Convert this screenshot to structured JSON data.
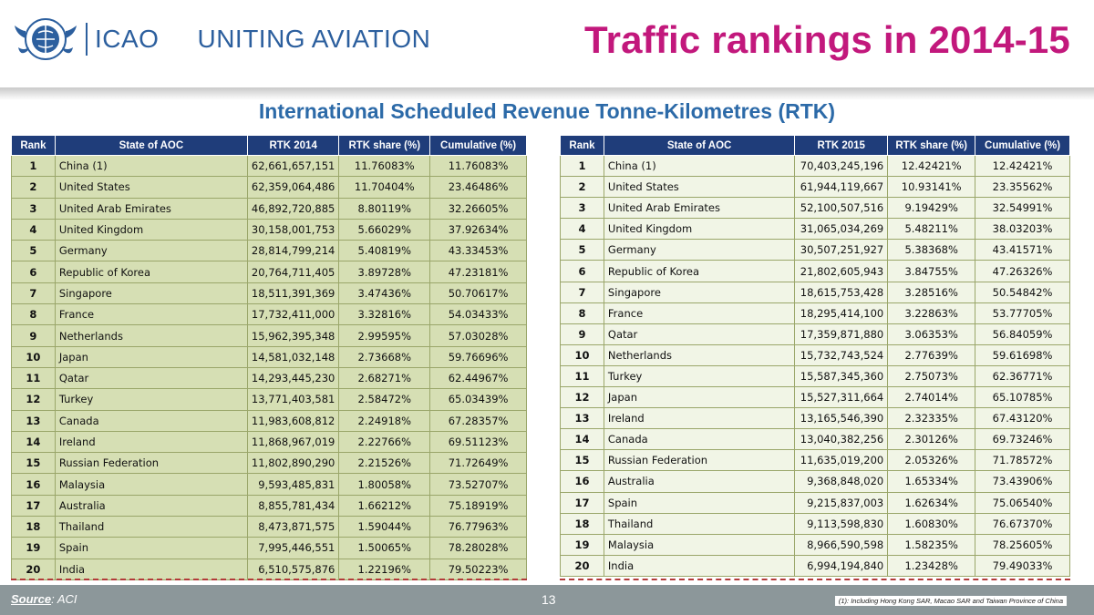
{
  "header": {
    "logo_text": "ICAO",
    "tagline": "UNITING AVIATION",
    "title": "Traffic rankings in 2014-15"
  },
  "subtitle": "International Scheduled Revenue Tonne-Kilometres (RTK)",
  "table_2014": {
    "headers": [
      "Rank",
      "State of AOC",
      "RTK 2014",
      "RTK share (%)",
      "Cumulative (%)"
    ],
    "rows": [
      [
        "1",
        "China (1)",
        "62,661,657,151",
        "11.76083%",
        "11.76083%"
      ],
      [
        "2",
        "United States",
        "62,359,064,486",
        "11.70404%",
        "23.46486%"
      ],
      [
        "3",
        "United Arab Emirates",
        "46,892,720,885",
        "8.80119%",
        "32.26605%"
      ],
      [
        "4",
        "United Kingdom",
        "30,158,001,753",
        "5.66029%",
        "37.92634%"
      ],
      [
        "5",
        "Germany",
        "28,814,799,214",
        "5.40819%",
        "43.33453%"
      ],
      [
        "6",
        "Republic of Korea",
        "20,764,711,405",
        "3.89728%",
        "47.23181%"
      ],
      [
        "7",
        "Singapore",
        "18,511,391,369",
        "3.47436%",
        "50.70617%"
      ],
      [
        "8",
        "France",
        "17,732,411,000",
        "3.32816%",
        "54.03433%"
      ],
      [
        "9",
        "Netherlands",
        "15,962,395,348",
        "2.99595%",
        "57.03028%"
      ],
      [
        "10",
        "Japan",
        "14,581,032,148",
        "2.73668%",
        "59.76696%"
      ],
      [
        "11",
        "Qatar",
        "14,293,445,230",
        "2.68271%",
        "62.44967%"
      ],
      [
        "12",
        "Turkey",
        "13,771,403,581",
        "2.58472%",
        "65.03439%"
      ],
      [
        "13",
        "Canada",
        "11,983,608,812",
        "2.24918%",
        "67.28357%"
      ],
      [
        "14",
        "Ireland",
        "11,868,967,019",
        "2.22766%",
        "69.51123%"
      ],
      [
        "15",
        "Russian Federation",
        "11,802,890,290",
        "2.21526%",
        "71.72649%"
      ],
      [
        "16",
        "Malaysia",
        "9,593,485,831",
        "1.80058%",
        "73.52707%"
      ],
      [
        "17",
        "Australia",
        "8,855,781,434",
        "1.66212%",
        "75.18919%"
      ],
      [
        "18",
        "Thailand",
        "8,473,871,575",
        "1.59044%",
        "76.77963%"
      ],
      [
        "19",
        "Spain",
        "7,995,446,551",
        "1.50065%",
        "78.28028%"
      ],
      [
        "20",
        "India",
        "6,510,575,876",
        "1.22196%",
        "79.50223%"
      ]
    ]
  },
  "table_2015": {
    "headers": [
      "Rank",
      "State of AOC",
      "RTK 2015",
      "RTK share (%)",
      "Cumulative (%)"
    ],
    "rows": [
      [
        "1",
        "China (1)",
        "70,403,245,196",
        "12.42421%",
        "12.42421%"
      ],
      [
        "2",
        "United States",
        "61,944,119,667",
        "10.93141%",
        "23.35562%"
      ],
      [
        "3",
        "United Arab Emirates",
        "52,100,507,516",
        "9.19429%",
        "32.54991%"
      ],
      [
        "4",
        "United Kingdom",
        "31,065,034,269",
        "5.48211%",
        "38.03203%"
      ],
      [
        "5",
        "Germany",
        "30,507,251,927",
        "5.38368%",
        "43.41571%"
      ],
      [
        "6",
        "Republic of Korea",
        "21,802,605,943",
        "3.84755%",
        "47.26326%"
      ],
      [
        "7",
        "Singapore",
        "18,615,753,428",
        "3.28516%",
        "50.54842%"
      ],
      [
        "8",
        "France",
        "18,295,414,100",
        "3.22863%",
        "53.77705%"
      ],
      [
        "9",
        "Qatar",
        "17,359,871,880",
        "3.06353%",
        "56.84059%"
      ],
      [
        "10",
        "Netherlands",
        "15,732,743,524",
        "2.77639%",
        "59.61698%"
      ],
      [
        "11",
        "Turkey",
        "15,587,345,360",
        "2.75073%",
        "62.36771%"
      ],
      [
        "12",
        "Japan",
        "15,527,311,664",
        "2.74014%",
        "65.10785%"
      ],
      [
        "13",
        "Ireland",
        "13,165,546,390",
        "2.32335%",
        "67.43120%"
      ],
      [
        "14",
        "Canada",
        "13,040,382,256",
        "2.30126%",
        "69.73246%"
      ],
      [
        "15",
        "Russian Federation",
        "11,635,019,200",
        "2.05326%",
        "71.78572%"
      ],
      [
        "16",
        "Australia",
        "9,368,848,020",
        "1.65334%",
        "73.43906%"
      ],
      [
        "17",
        "Spain",
        "9,215,837,003",
        "1.62634%",
        "75.06540%"
      ],
      [
        "18",
        "Thailand",
        "9,113,598,830",
        "1.60830%",
        "76.67370%"
      ],
      [
        "19",
        "Malaysia",
        "8,966,590,598",
        "1.58235%",
        "78.25605%"
      ],
      [
        "20",
        "India",
        "6,994,194,840",
        "1.23428%",
        "79.49033%"
      ]
    ]
  },
  "footer": {
    "source_label": "Source",
    "source_value": ": ACI",
    "page_number": "13",
    "footnote": "(1): Including Hong Kong SAR, Macao SAR and Taiwan Province of China"
  },
  "colors": {
    "title": "#c2187c",
    "brand_blue": "#2c5f9e",
    "table_header": "#1f3d7a",
    "footer_bar": "#8c979a"
  }
}
